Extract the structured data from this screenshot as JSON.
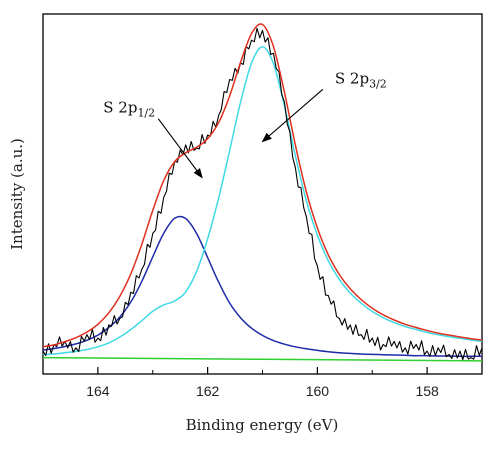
{
  "chart_data": {
    "type": "line",
    "title": "",
    "xlabel": "Binding energy (eV)",
    "ylabel": "Intensity (a.u.)",
    "xlim": [
      165,
      157
    ],
    "ylim": [
      -0.05,
      1.05
    ],
    "x_reversed": true,
    "y_ticks_shown": false,
    "x_ticks": [
      164,
      162,
      160,
      158
    ],
    "x_tick_labels": [
      "164",
      "162",
      "160",
      "158"
    ],
    "grid": false,
    "legend": "none",
    "annotations": [
      {
        "label": "S 2p",
        "subscript": "1/2",
        "arrow_from": [
          162.9,
          0.73
        ],
        "arrow_to": [
          162.1,
          0.55
        ]
      },
      {
        "label": "S 2p",
        "subscript": "3/2",
        "arrow_from": [
          159.9,
          0.82
        ],
        "arrow_to": [
          161.0,
          0.66
        ]
      }
    ],
    "series": [
      {
        "color": "#000000",
        "role": "raw",
        "x": [
          165.0,
          164.8,
          164.6,
          164.4,
          164.2,
          164.0,
          163.8,
          163.6,
          163.4,
          163.2,
          163.0,
          162.8,
          162.6,
          162.4,
          162.2,
          162.0,
          161.8,
          161.6,
          161.4,
          161.2,
          161.0,
          160.8,
          160.6,
          160.4,
          160.2,
          160.0,
          159.8,
          159.6,
          159.4,
          159.2,
          159.0,
          158.8,
          158.6,
          158.4,
          158.2,
          158.0,
          157.8,
          157.6,
          157.4,
          157.2,
          157.0
        ],
        "y": [
          0.02,
          0.04,
          0.05,
          0.03,
          0.07,
          0.06,
          0.1,
          0.12,
          0.2,
          0.27,
          0.38,
          0.49,
          0.6,
          0.65,
          0.64,
          0.68,
          0.74,
          0.85,
          0.9,
          0.97,
          1.0,
          0.93,
          0.78,
          0.58,
          0.43,
          0.28,
          0.19,
          0.12,
          0.1,
          0.07,
          0.06,
          0.04,
          0.05,
          0.03,
          0.04,
          0.02,
          0.03,
          0.01,
          0.02,
          0.0,
          0.03
        ]
      },
      {
        "color": "#e0301e",
        "role": "fit",
        "x": [
          165.0,
          164.8,
          164.6,
          164.4,
          164.2,
          164.0,
          163.8,
          163.6,
          163.4,
          163.2,
          163.0,
          162.8,
          162.6,
          162.4,
          162.2,
          162.0,
          161.8,
          161.6,
          161.4,
          161.2,
          161.0,
          160.8,
          160.6,
          160.4,
          160.2,
          160.0,
          159.8,
          159.6,
          159.4,
          159.2,
          159.0,
          158.8,
          158.6,
          158.4,
          158.2,
          158.0,
          157.8,
          157.6,
          157.4,
          157.2,
          157.0
        ],
        "y": [
          0.033,
          0.039,
          0.049,
          0.061,
          0.078,
          0.102,
          0.137,
          0.187,
          0.256,
          0.346,
          0.45,
          0.541,
          0.599,
          0.626,
          0.643,
          0.669,
          0.718,
          0.799,
          0.902,
          0.99,
          1.018,
          0.95,
          0.81,
          0.649,
          0.506,
          0.396,
          0.314,
          0.254,
          0.21,
          0.177,
          0.151,
          0.131,
          0.115,
          0.102,
          0.092,
          0.083,
          0.075,
          0.069,
          0.063,
          0.058,
          0.054
        ]
      },
      {
        "color": "#1f2aa8",
        "role": "component",
        "name_ref": "S 2p1/2",
        "x": [
          165.0,
          164.8,
          164.6,
          164.4,
          164.2,
          164.0,
          163.8,
          163.6,
          163.4,
          163.2,
          163.0,
          162.8,
          162.6,
          162.4,
          162.2,
          162.0,
          161.8,
          161.6,
          161.4,
          161.2,
          161.0,
          160.8,
          160.6,
          160.4,
          160.2,
          160.0,
          159.8,
          159.6,
          159.4,
          159.2,
          159.0,
          158.8,
          158.6,
          158.4,
          158.2,
          158.0,
          157.8,
          157.6,
          157.4,
          157.2,
          157.0
        ],
        "y": [
          0.023,
          0.028,
          0.034,
          0.042,
          0.053,
          0.069,
          0.092,
          0.124,
          0.17,
          0.233,
          0.308,
          0.38,
          0.426,
          0.425,
          0.379,
          0.306,
          0.231,
          0.167,
          0.122,
          0.09,
          0.068,
          0.052,
          0.041,
          0.033,
          0.027,
          0.022,
          0.018,
          0.015,
          0.013,
          0.011,
          0.01,
          0.009,
          0.008,
          0.007,
          0.006,
          0.006,
          0.005,
          0.005,
          0.004,
          0.004,
          0.004
        ]
      },
      {
        "color": "#3fd9e6",
        "role": "component",
        "name_ref": "S 2p3/2",
        "x": [
          165.0,
          164.8,
          164.6,
          164.4,
          164.2,
          164.0,
          163.8,
          163.6,
          163.4,
          163.2,
          163.0,
          162.8,
          162.6,
          162.4,
          162.2,
          162.0,
          161.8,
          161.6,
          161.4,
          161.2,
          161.0,
          160.8,
          160.6,
          160.4,
          160.2,
          160.0,
          159.8,
          159.6,
          159.4,
          159.2,
          159.0,
          158.8,
          158.6,
          158.4,
          158.2,
          158.0,
          157.8,
          157.6,
          157.4,
          157.2,
          157.0
        ],
        "y": [
          0.01,
          0.011,
          0.015,
          0.019,
          0.025,
          0.033,
          0.045,
          0.063,
          0.086,
          0.113,
          0.142,
          0.161,
          0.173,
          0.201,
          0.264,
          0.363,
          0.487,
          0.632,
          0.78,
          0.9,
          0.95,
          0.898,
          0.769,
          0.616,
          0.479,
          0.374,
          0.296,
          0.239,
          0.197,
          0.166,
          0.141,
          0.122,
          0.107,
          0.095,
          0.086,
          0.077,
          0.07,
          0.064,
          0.059,
          0.054,
          0.05
        ]
      },
      {
        "color": "#2fcf2f",
        "role": "baseline",
        "x": [
          165.0,
          157.0
        ],
        "y": [
          0.0,
          -0.01
        ]
      }
    ]
  }
}
